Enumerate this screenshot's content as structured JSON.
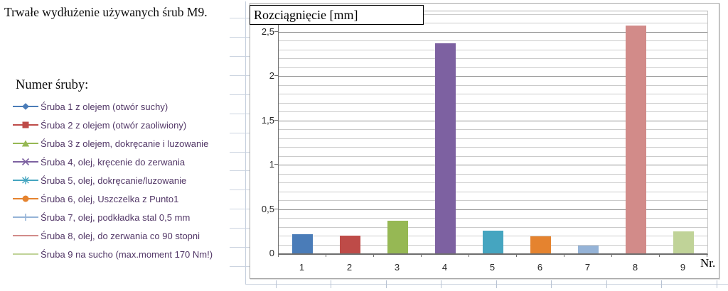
{
  "page": {
    "title": "Trwałe wydłużenie używanych śrub M9."
  },
  "legend": {
    "heading": "Numer śruby:",
    "text_color": "#523767",
    "items": [
      {
        "label": "Śruba 1 z olejem (otwór suchy)",
        "marker": "diamond",
        "color": "#4A7CB8"
      },
      {
        "label": "Śruba 2 z olejem (otwór zaoliwiony)",
        "marker": "square",
        "color": "#BE4B48"
      },
      {
        "label": "Śruba 3 z olejem, dokręcanie i luzowanie",
        "marker": "triangle",
        "color": "#96B854"
      },
      {
        "label": "Śruba 4, olej, kręcenie do zerwania",
        "marker": "x",
        "color": "#7D61A1"
      },
      {
        "label": "Śruba 5, olej, dokręcanie/luzowanie",
        "marker": "asterisk",
        "color": "#45A5C0"
      },
      {
        "label": "Śruba 6, olej, Uszczelka z Punto1",
        "marker": "circle",
        "color": "#E5832F"
      },
      {
        "label": "Śruba 7, olej, podkładka stal 0,5 mm",
        "marker": "plus",
        "color": "#95B3D7"
      },
      {
        "label": "Śruba 8, olej, do zerwania co 90 stopni",
        "marker": "line",
        "color": "#D28B89"
      },
      {
        "label": "Śruba 9 na sucho (max.moment 170 Nm!)",
        "marker": "line",
        "color": "#C0D398"
      }
    ]
  },
  "chart_data": {
    "type": "bar",
    "title": "Rozciągnięcie [mm]",
    "x_axis_label": "Nr.",
    "categories": [
      "1",
      "2",
      "3",
      "4",
      "5",
      "6",
      "7",
      "8",
      "9"
    ],
    "values": [
      0.22,
      0.2,
      0.37,
      2.37,
      0.26,
      0.19,
      0.09,
      2.57,
      0.25
    ],
    "bar_colors": [
      "#4A7CB8",
      "#BE4B48",
      "#96B854",
      "#7D61A1",
      "#45A5C0",
      "#E5832F",
      "#95B3D7",
      "#D28B89",
      "#C0D398"
    ],
    "ylim": [
      0,
      2.73
    ],
    "y_ticks": {
      "values": [
        0,
        0.5,
        1,
        1.5,
        2,
        2.5
      ],
      "labels": [
        "0",
        "0,5",
        "1",
        "1,5",
        "2",
        "2,5"
      ]
    },
    "minor_grid_step": 0.1,
    "major_grid_step": 0.5,
    "grid": true,
    "legend_position": "outside-left",
    "axis_text_color": "#262626"
  }
}
